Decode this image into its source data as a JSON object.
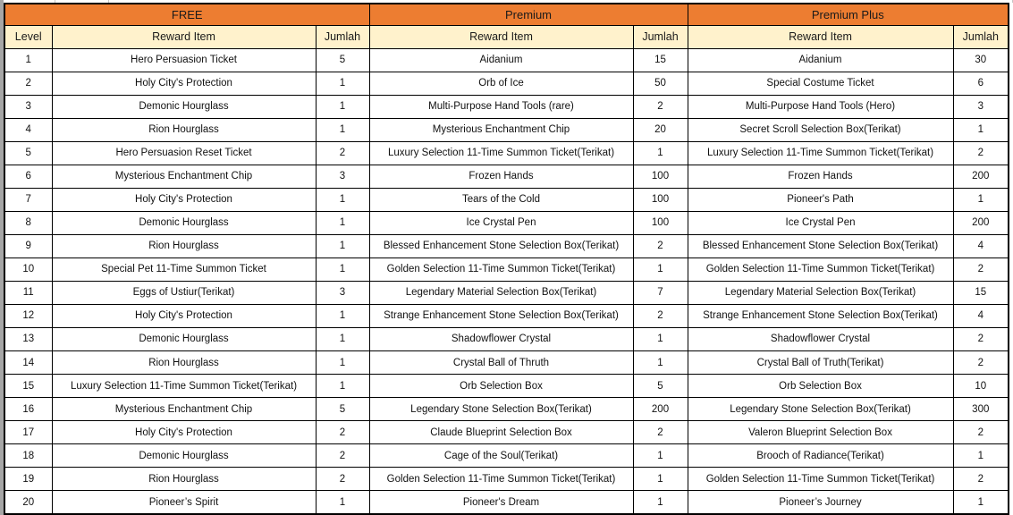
{
  "colors": {
    "section_header_bg": "#ED7D31",
    "column_header_bg": "#FFF2CC",
    "border": "#000000",
    "sheet_edge_gray": "#A6A6A6",
    "cell_bg": "#FFFFFF"
  },
  "table": {
    "level_header": "Level",
    "sections": [
      {
        "title": "FREE",
        "reward_header": "Reward Item",
        "qty_header": "Jumlah"
      },
      {
        "title": "Premium",
        "reward_header": "Reward Item",
        "qty_header": "Jumlah"
      },
      {
        "title": "Premium Plus",
        "reward_header": "Reward Item",
        "qty_header": "Jumlah"
      }
    ],
    "rows": [
      [
        "1",
        "Hero Persuasion Ticket",
        "5",
        "Aidanium",
        "15",
        "Aidanium",
        "30"
      ],
      [
        "2",
        "Holy City's Protection",
        "1",
        "Orb of Ice",
        "50",
        "Special Costume Ticket",
        "6"
      ],
      [
        "3",
        "Demonic Hourglass",
        "1",
        "Multi-Purpose Hand Tools (rare)",
        "2",
        "Multi-Purpose Hand Tools (Hero)",
        "3"
      ],
      [
        "4",
        "Rion Hourglass",
        "1",
        "Mysterious Enchantment Chip",
        "20",
        "Secret Scroll Selection Box(Terikat)",
        "1"
      ],
      [
        "5",
        "Hero Persuasion Reset Ticket",
        "2",
        "Luxury Selection 11-Time Summon Ticket(Terikat)",
        "1",
        "Luxury Selection 11-Time Summon Ticket(Terikat)",
        "2"
      ],
      [
        "6",
        "Mysterious Enchantment Chip",
        "3",
        "Frozen Hands",
        "100",
        "Frozen Hands",
        "200"
      ],
      [
        "7",
        "Holy City's Protection",
        "1",
        "Tears of the Cold",
        "100",
        "Pioneer's Path",
        "1"
      ],
      [
        "8",
        "Demonic Hourglass",
        "1",
        "Ice Crystal Pen",
        "100",
        "Ice Crystal Pen",
        "200"
      ],
      [
        "9",
        "Rion Hourglass",
        "1",
        "Blessed Enhancement Stone Selection Box(Terikat)",
        "2",
        "Blessed Enhancement Stone Selection Box(Terikat)",
        "4"
      ],
      [
        "10",
        "Special Pet 11-Time Summon Ticket",
        "1",
        "Golden Selection 11-Time Summon Ticket(Terikat)",
        "1",
        "Golden Selection 11-Time Summon Ticket(Terikat)",
        "2"
      ],
      [
        "11",
        "Eggs of Ustiur(Terikat)",
        "3",
        "Legendary Material Selection Box(Terikat)",
        "7",
        "Legendary Material Selection Box(Terikat)",
        "15"
      ],
      [
        "12",
        "Holy City's Protection",
        "1",
        "Strange Enhancement Stone Selection Box(Terikat)",
        "2",
        "Strange Enhancement Stone Selection Box(Terikat)",
        "4"
      ],
      [
        "13",
        "Demonic Hourglass",
        "1",
        "Shadowflower Crystal",
        "1",
        "Shadowflower Crystal",
        "2"
      ],
      [
        "14",
        "Rion Hourglass",
        "1",
        "Crystal Ball of Thruth",
        "1",
        "Crystal Ball of Truth(Terikat)",
        "2"
      ],
      [
        "15",
        "Luxury Selection 11-Time Summon Ticket(Terikat)",
        "1",
        "Orb Selection Box",
        "5",
        "Orb Selection Box",
        "10"
      ],
      [
        "16",
        "Mysterious Enchantment Chip",
        "5",
        "Legendary Stone Selection Box(Terikat)",
        "200",
        "Legendary Stone Selection Box(Terikat)",
        "300"
      ],
      [
        "17",
        "Holy City's Protection",
        "2",
        "Claude Blueprint Selection Box",
        "2",
        "Valeron Blueprint Selection Box",
        "2"
      ],
      [
        "18",
        "Demonic Hourglass",
        "2",
        "Cage of the Soul(Terikat)",
        "1",
        "Brooch of Radiance(Terikat)",
        "1"
      ],
      [
        "19",
        "Rion Hourglass",
        "2",
        "Golden Selection 11-Time Summon Ticket(Terikat)",
        "1",
        "Golden Selection 11-Time Summon Ticket(Terikat)",
        "2"
      ],
      [
        "20",
        "Pioneer’s Spirit",
        "1",
        "Pioneer's Dream",
        "1",
        "Pioneer’s Journey",
        "1"
      ]
    ]
  }
}
